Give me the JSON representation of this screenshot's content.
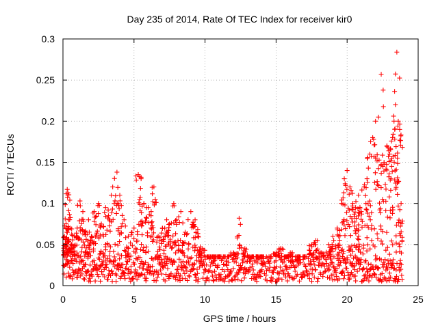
{
  "chart_data": {
    "type": "scatter",
    "title": "Day 235 of 2014, Rate Of TEC Index for receiver kir0",
    "xlabel": "GPS time / hours",
    "ylabel": "ROTI / TECUs",
    "xlim": [
      0,
      25
    ],
    "ylim": [
      0,
      0.3
    ],
    "grid": true,
    "marker": "+",
    "color": "#ff0000",
    "x_ticks": [
      0,
      5,
      10,
      15,
      20,
      25
    ],
    "x_tick_labels": [
      "0",
      "5",
      "10",
      "15",
      "20",
      "25"
    ],
    "y_ticks": [
      0,
      0.05,
      0.1,
      0.15,
      0.2,
      0.25,
      0.3
    ],
    "y_tick_labels": [
      "0",
      "0.05",
      "0.1",
      "0.15",
      "0.2",
      "0.25",
      "0.3"
    ],
    "series": [
      {
        "name": "ROTI kir0",
        "x": [
          0.1,
          0.2,
          0.3,
          0.35,
          0.4,
          0.5,
          0.6,
          0.8,
          1.0,
          1.2,
          1.4,
          1.6,
          1.8,
          2.0,
          2.2,
          2.5,
          2.7,
          3.0,
          3.2,
          3.5,
          3.8,
          4.0,
          4.3,
          4.6,
          5.0,
          5.3,
          5.5,
          5.7,
          6.0,
          6.2,
          6.4,
          6.7,
          7.0,
          7.3,
          7.5,
          7.8,
          8.0,
          8.3,
          8.6,
          9.0,
          9.3,
          9.5,
          9.8,
          10.2,
          10.6,
          11.0,
          11.5,
          12.0,
          12.4,
          12.8,
          13.2,
          13.6,
          14.0,
          14.5,
          15.0,
          15.3,
          15.7,
          16.0,
          16.5,
          17.0,
          17.5,
          17.8,
          18.2,
          18.7,
          19.0,
          19.3,
          19.6,
          19.8,
          20.0,
          20.2,
          20.4,
          20.6,
          20.8,
          21.0,
          21.2,
          21.4,
          21.6,
          21.8,
          22.0,
          22.2,
          22.4,
          22.6,
          22.8,
          23.0,
          23.2,
          23.3,
          23.4,
          23.5,
          23.6,
          23.7,
          23.8
        ],
        "y": [
          0.06,
          0.07,
          0.117,
          0.113,
          0.08,
          0.07,
          0.05,
          0.06,
          0.07,
          0.103,
          0.09,
          0.065,
          0.08,
          0.06,
          0.09,
          0.1,
          0.075,
          0.095,
          0.085,
          0.12,
          0.138,
          0.11,
          0.08,
          0.06,
          0.07,
          0.135,
          0.13,
          0.1,
          0.095,
          0.085,
          0.12,
          0.06,
          0.07,
          0.08,
          0.075,
          0.1,
          0.08,
          0.09,
          0.065,
          0.09,
          0.08,
          0.06,
          0.045,
          0.035,
          0.03,
          0.035,
          0.03,
          0.04,
          0.082,
          0.045,
          0.03,
          0.035,
          0.03,
          0.03,
          0.04,
          0.045,
          0.035,
          0.04,
          0.03,
          0.035,
          0.05,
          0.055,
          0.04,
          0.05,
          0.06,
          0.07,
          0.1,
          0.13,
          0.14,
          0.12,
          0.1,
          0.095,
          0.11,
          0.09,
          0.12,
          0.13,
          0.16,
          0.18,
          0.2,
          0.205,
          0.257,
          0.15,
          0.17,
          0.16,
          0.18,
          0.2,
          0.22,
          0.284,
          0.2,
          0.19,
          0.1
        ],
        "baseline_band": [
          0.005,
          0.035
        ]
      }
    ]
  }
}
